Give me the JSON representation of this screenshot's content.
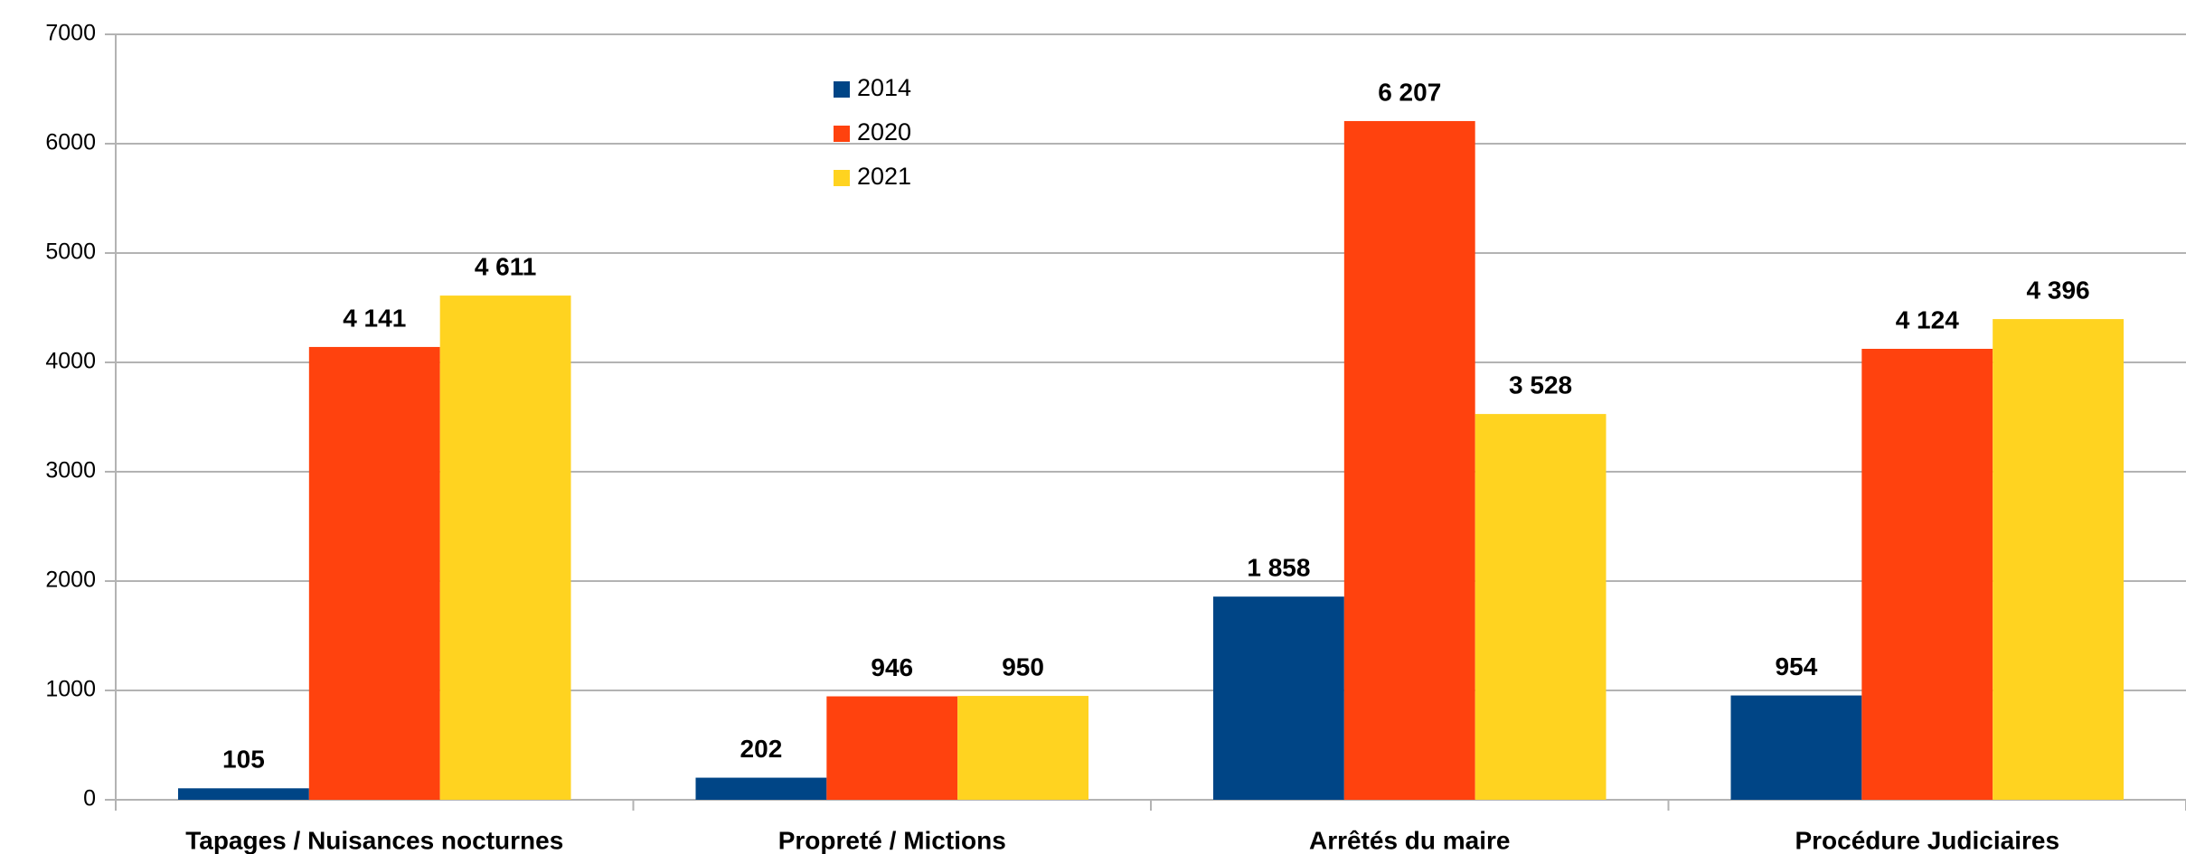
{
  "chart_data": {
    "type": "bar",
    "categories": [
      "Tapages / Nuisances nocturnes",
      "Propreté / Mictions",
      "Arrêtés du maire",
      "Procédure Judiciaires"
    ],
    "series": [
      {
        "name": "2014",
        "color": "#004586",
        "values": [
          105,
          202,
          1858,
          954
        ],
        "value_labels": [
          "105",
          "202",
          "1 858",
          "954"
        ]
      },
      {
        "name": "2020",
        "color": "#ff420e",
        "values": [
          4141,
          946,
          6207,
          4124
        ],
        "value_labels": [
          "4 141",
          "946",
          "6 207",
          "4 124"
        ]
      },
      {
        "name": "2021",
        "color": "#ffd320",
        "values": [
          4611,
          950,
          3528,
          4396
        ],
        "value_labels": [
          "4 611",
          "950",
          "3 528",
          "4 396"
        ]
      }
    ],
    "ylim": [
      0,
      7000
    ],
    "yticks": [
      0,
      1000,
      2000,
      3000,
      4000,
      5000,
      6000,
      7000
    ],
    "grid": true
  }
}
